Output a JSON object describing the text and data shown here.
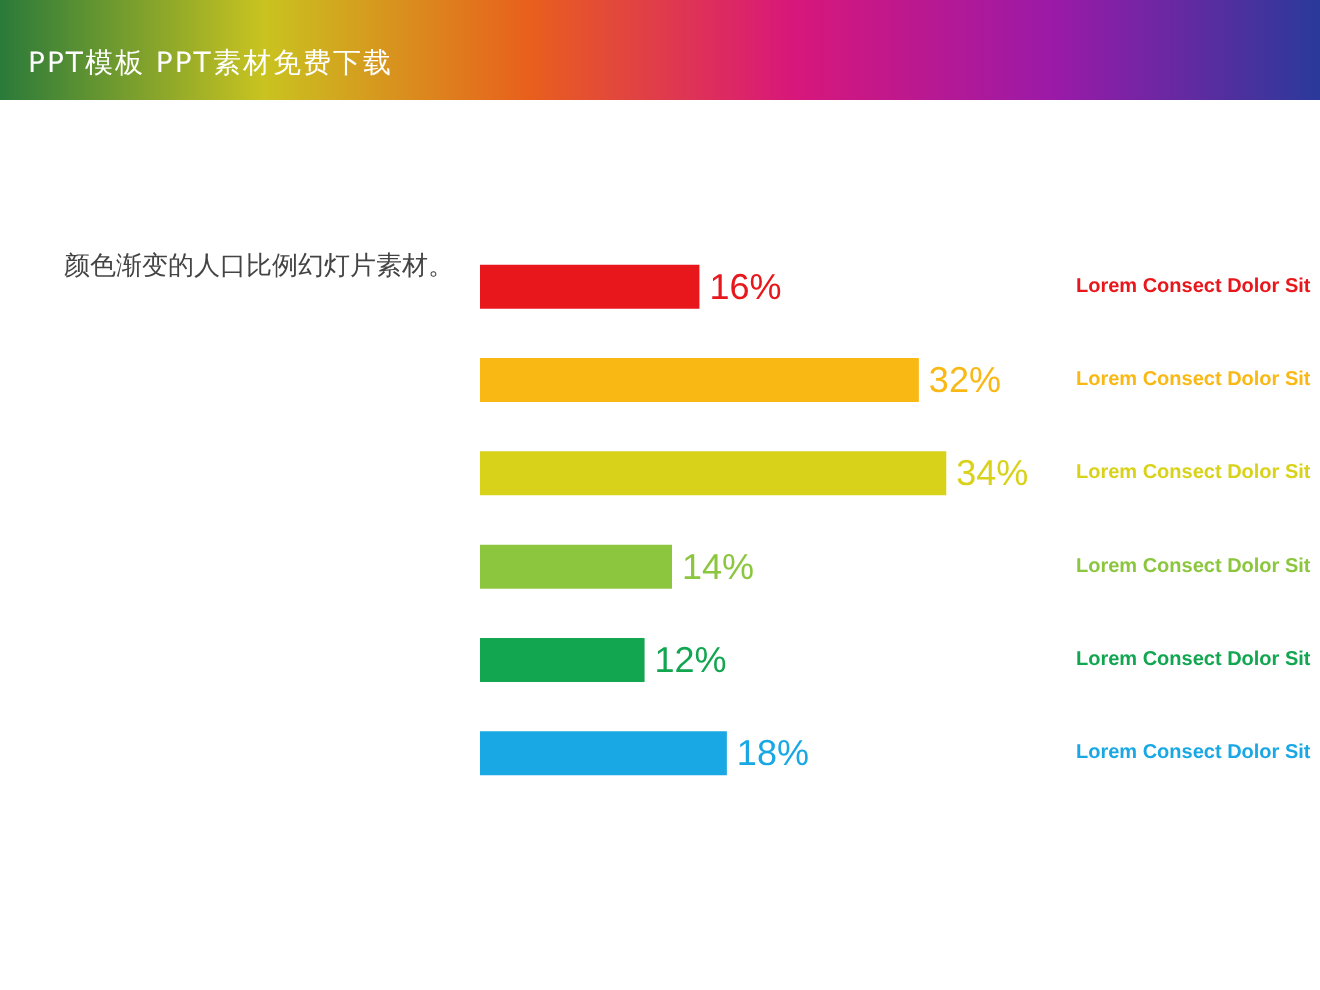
{
  "chart_data": {
    "type": "bar",
    "orientation": "horizontal",
    "title": "PPT模板 PPT素材免费下载",
    "annotations": [
      "颜色渐变的人口比例幻灯片素材。"
    ],
    "categories": [
      "Lorem Consect Dolor Sit",
      "Lorem Consect Dolor Sit",
      "Lorem Consect Dolor Sit",
      "Lorem Consect Dolor Sit",
      "Lorem Consect Dolor Sit",
      "Lorem Consect Dolor Sit"
    ],
    "values": [
      16,
      32,
      34,
      14,
      12,
      18
    ],
    "value_labels": [
      "16%",
      "32%",
      "34%",
      "14%",
      "12%",
      "18%"
    ],
    "colors": [
      "#e8171c",
      "#f9b814",
      "#d9d21a",
      "#8cc63f",
      "#12a651",
      "#19a8e3"
    ]
  }
}
